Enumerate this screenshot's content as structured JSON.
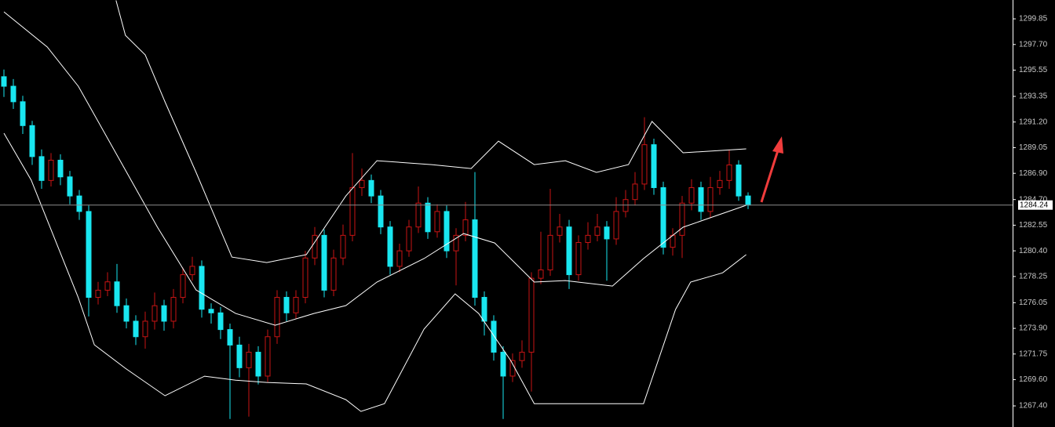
{
  "chart_data": {
    "type": "candlestick",
    "up_color": "#c81414",
    "down_color": "#19e6f0",
    "band_color": "#ffffff",
    "price_line_color": "#8c8c8c",
    "ylim": [
      1265.63,
      1301.43
    ],
    "yticks": [
      1299.85,
      {
        "value": 1297.7,
        "label": "1297.70"
      },
      1295.55,
      1293.35,
      {
        "value": 1291.2,
        "label": "1291.20"
      },
      1289.05,
      {
        "value": 1286.9,
        "label": "1286.90"
      },
      {
        "value": 1284.7,
        "label": "1284.70"
      },
      1282.55,
      {
        "value": 1280.4,
        "label": "1280.40"
      },
      1278.25,
      1276.05,
      {
        "value": 1273.9,
        "label": "1273.90"
      },
      1271.75,
      {
        "value": 1269.6,
        "label": "1269.60"
      },
      {
        "value": 1267.4,
        "label": "1267.40"
      }
    ],
    "current_price": 1284.24,
    "open": [
      1295.0,
      1294.2,
      1292.9,
      1290.9,
      1288.3,
      1286.3,
      1288.0,
      1286.6,
      1285.0,
      1283.7,
      1276.5,
      1277.1,
      1277.8,
      1275.8,
      1274.5,
      1273.2,
      1274.5,
      1275.8,
      1274.5,
      1276.5,
      1278.4,
      1279.1,
      1275.5,
      1275.2,
      1273.8,
      1272.5,
      1270.6,
      1271.9,
      1269.9,
      1273.2,
      1276.5,
      1275.2,
      1276.5,
      1279.8,
      1281.7,
      1277.1,
      1279.8,
      1281.7,
      1285.7,
      1286.3,
      1285.0,
      1282.4,
      1279.1,
      1280.4,
      1282.4,
      1284.4,
      1282.0,
      1283.7,
      1280.4,
      1281.7,
      1283.0,
      1276.5,
      1274.5,
      1271.9,
      1269.9,
      1271.2,
      1271.9,
      1278.1,
      1278.8,
      1281.7,
      1282.4,
      1278.4,
      1281.1,
      1281.7,
      1282.4,
      1281.4,
      1283.7,
      1284.7,
      1286.0,
      1289.3,
      1285.7,
      1280.7,
      1281.7,
      1284.4,
      1285.7,
      1283.7,
      1285.7,
      1286.3,
      1287.6,
      1285.0
    ],
    "high": [
      1295.6,
      1294.8,
      1293.4,
      1291.3,
      1288.9,
      1288.6,
      1288.5,
      1287.1,
      1285.5,
      1284.2,
      1277.8,
      1278.6,
      1279.3,
      1276.4,
      1275.0,
      1275.3,
      1276.9,
      1276.3,
      1277.2,
      1279.0,
      1279.9,
      1279.6,
      1276.0,
      1275.7,
      1274.3,
      1273.2,
      1272.6,
      1272.4,
      1273.8,
      1277.1,
      1277.0,
      1277.1,
      1280.4,
      1282.4,
      1282.2,
      1280.5,
      1282.6,
      1288.6,
      1287.3,
      1286.8,
      1285.5,
      1282.9,
      1281.0,
      1283.0,
      1285.8,
      1284.9,
      1284.3,
      1284.2,
      1282.3,
      1284.5,
      1287.0,
      1277.0,
      1275.0,
      1272.4,
      1271.8,
      1272.9,
      1278.6,
      1282.0,
      1285.6,
      1283.5,
      1283.0,
      1281.7,
      1282.8,
      1283.5,
      1282.9,
      1284.9,
      1285.5,
      1287.0,
      1291.6,
      1289.8,
      1286.2,
      1282.3,
      1285.0,
      1286.4,
      1286.2,
      1286.6,
      1287.1,
      1288.9,
      1288.0,
      1285.3
    ],
    "low": [
      1293.3,
      1292.3,
      1290.2,
      1287.6,
      1285.6,
      1285.8,
      1285.9,
      1284.3,
      1283.0,
      1274.9,
      1275.9,
      1276.6,
      1275.2,
      1273.9,
      1272.5,
      1272.2,
      1273.8,
      1273.7,
      1273.9,
      1276.0,
      1277.9,
      1274.8,
      1274.3,
      1273.0,
      1266.3,
      1269.8,
      1266.5,
      1269.2,
      1269.4,
      1272.6,
      1274.5,
      1274.7,
      1276.0,
      1279.2,
      1276.5,
      1276.6,
      1279.2,
      1281.2,
      1285.0,
      1284.4,
      1281.8,
      1278.4,
      1278.6,
      1279.9,
      1281.9,
      1281.4,
      1281.5,
      1279.8,
      1277.5,
      1281.2,
      1275.8,
      1273.3,
      1271.2,
      1266.3,
      1269.4,
      1270.6,
      1268.6,
      1277.6,
      1278.3,
      1281.1,
      1277.2,
      1277.9,
      1280.5,
      1281.2,
      1277.9,
      1280.9,
      1283.2,
      1284.2,
      1285.5,
      1285.1,
      1280.1,
      1280.0,
      1279.8,
      1283.8,
      1283.0,
      1283.2,
      1285.1,
      1285.6,
      1284.6,
      1283.9
    ],
    "close": [
      1294.2,
      1292.9,
      1290.9,
      1288.3,
      1286.3,
      1288.0,
      1286.6,
      1285.0,
      1283.7,
      1276.5,
      1277.1,
      1277.8,
      1275.8,
      1274.5,
      1273.2,
      1274.5,
      1275.8,
      1274.5,
      1276.5,
      1278.4,
      1279.1,
      1275.5,
      1275.2,
      1273.8,
      1272.5,
      1270.6,
      1271.9,
      1269.9,
      1273.2,
      1276.5,
      1275.2,
      1276.5,
      1279.8,
      1281.7,
      1277.1,
      1279.8,
      1281.7,
      1285.7,
      1286.3,
      1285.0,
      1282.4,
      1279.1,
      1280.4,
      1282.4,
      1284.4,
      1282.0,
      1283.7,
      1280.4,
      1281.7,
      1283.0,
      1276.5,
      1274.5,
      1271.9,
      1269.9,
      1271.2,
      1271.9,
      1278.1,
      1278.8,
      1281.7,
      1282.4,
      1278.4,
      1281.1,
      1281.7,
      1282.4,
      1281.4,
      1283.7,
      1284.7,
      1286.0,
      1289.3,
      1285.7,
      1280.7,
      1281.7,
      1284.4,
      1285.7,
      1283.7,
      1285.7,
      1286.3,
      1287.6,
      1285.0,
      1284.24
    ],
    "bands": [
      {
        "x": [
          11.9,
          12.9,
          15,
          17.1,
          20.4,
          24.2,
          27.9,
          32.1,
          36.3,
          39.6,
          45.4,
          49.6,
          52.5,
          56.3,
          59.6,
          62.9,
          66.3,
          68.8,
          72.1,
          78.8
        ],
        "values": [
          1301.4,
          1298.47,
          1296.83,
          1292.89,
          1286.98,
          1279.88,
          1279.42,
          1280.08,
          1285.0,
          1287.96,
          1287.63,
          1287.3,
          1289.6,
          1287.63,
          1287.96,
          1286.98,
          1287.63,
          1291.25,
          1288.62,
          1288.95
        ]
      },
      {
        "x": [
          0,
          4.6,
          7.9,
          12.1,
          16.3,
          20.4,
          24.6,
          28.8,
          32.9,
          36.3,
          39.6,
          44.6,
          48.8,
          52.1,
          56.3,
          59.6,
          64.6,
          67.9,
          72.1,
          78.8
        ],
        "values": [
          1300.44,
          1297.49,
          1294.2,
          1288.29,
          1282.38,
          1277.12,
          1275.15,
          1274.16,
          1275.15,
          1275.81,
          1277.78,
          1279.75,
          1281.85,
          1281.06,
          1277.78,
          1277.91,
          1277.45,
          1279.75,
          1282.38,
          1284.22
        ]
      },
      {
        "x": [
          0,
          2.9,
          7.9,
          9.6,
          12.9,
          17.1,
          21.3,
          24.6,
          27.9,
          32.1,
          36.3,
          37.9,
          40.4,
          44.6,
          47.9,
          50.4,
          53.8,
          56.3,
          59.6,
          64.6,
          67.9,
          71.3,
          72.9,
          76.3,
          78.8
        ],
        "values": [
          1290.26,
          1286.32,
          1276.46,
          1272.52,
          1270.55,
          1268.25,
          1269.89,
          1269.56,
          1269.37,
          1269.24,
          1267.92,
          1266.94,
          1267.59,
          1273.84,
          1276.79,
          1275.15,
          1271.21,
          1267.59,
          1267.59,
          1267.59,
          1267.59,
          1275.48,
          1277.78,
          1278.56,
          1280.08
        ]
      }
    ]
  }
}
